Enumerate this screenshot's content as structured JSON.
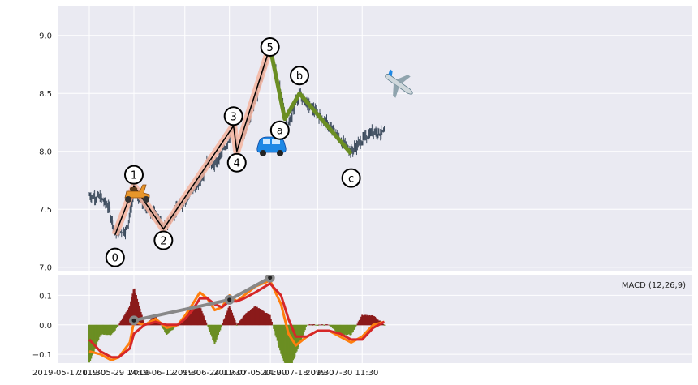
{
  "chart_data": [
    {
      "panel": "price",
      "type": "candlestick",
      "title": "",
      "xlabel": "",
      "ylabel": "",
      "ylim": [
        6.97,
        9.25
      ],
      "yticks": [
        "7.0",
        "7.5",
        "8.0",
        "8.5",
        "9.0"
      ],
      "grid": true,
      "price_path": [
        [
          "2019-05-17 11:30",
          7.62
        ],
        [
          "2019-05-20 11:30",
          7.6
        ],
        [
          "2019-05-22 14:00",
          7.52
        ],
        [
          "2019-05-24 11:30",
          7.3
        ],
        [
          "2019-05-27 11:30",
          7.32
        ],
        [
          "2019-05-28 11:30",
          7.48
        ],
        [
          "2019-05-29 14:00",
          7.68
        ],
        [
          "2019-05-31 11:30",
          7.55
        ],
        [
          "2019-06-04 11:30",
          7.45
        ],
        [
          "2019-06-06 14:00",
          7.33
        ],
        [
          "2019-06-10 11:30",
          7.52
        ],
        [
          "2019-06-13 11:30",
          7.62
        ],
        [
          "2019-06-16 11:30",
          7.75
        ],
        [
          "2019-06-18 11:30",
          7.92
        ],
        [
          "2019-06-20 11:30",
          7.88
        ],
        [
          "2019-06-23 11:30",
          8.05
        ],
        [
          "2019-06-25 14:00",
          8.22
        ],
        [
          "2019-06-26 11:30",
          8.0
        ],
        [
          "2019-06-28 11:30",
          8.18
        ],
        [
          "2019-07-01 11:30",
          8.45
        ],
        [
          "2019-07-03 11:30",
          8.7
        ],
        [
          "2019-07-05 11:30",
          8.9
        ],
        [
          "2019-07-07 11:30",
          8.62
        ],
        [
          "2019-07-09 11:30",
          8.3
        ],
        [
          "2019-07-10 11:30",
          8.22
        ],
        [
          "2019-07-12 11:30",
          8.45
        ],
        [
          "2019-07-13 11:30",
          8.48
        ],
        [
          "2019-07-17 11:30",
          8.35
        ],
        [
          "2019-07-20 11:30",
          8.25
        ],
        [
          "2019-07-24 11:30",
          8.1
        ],
        [
          "2019-07-27 11:30",
          8.0
        ],
        [
          "2019-07-30 11:30",
          8.1
        ],
        [
          "2019-08-02 11:30",
          8.18
        ],
        [
          "2019-08-05 11:30",
          8.15
        ]
      ],
      "impulse_wave": [
        {
          "label": "0",
          "x": "2019-05-24 11:30",
          "y": 7.28
        },
        {
          "label": "1",
          "x": "2019-05-29 14:00",
          "y": 7.7
        },
        {
          "label": "2",
          "x": "2019-06-06 14:00",
          "y": 7.33
        },
        {
          "label": "3",
          "x": "2019-06-25 14:00",
          "y": 8.22
        },
        {
          "label": "4",
          "x": "2019-06-26 11:30",
          "y": 8.0
        },
        {
          "label": "5",
          "x": "2019-07-05 11:30",
          "y": 8.9
        }
      ],
      "corrective_wave": [
        {
          "label": "a",
          "x": "2019-07-09 11:30",
          "y": 8.28
        },
        {
          "label": "b",
          "x": "2019-07-13 11:30",
          "y": 8.5
        },
        {
          "label": "c",
          "x": "2019-07-27 11:30",
          "y": 7.98
        }
      ],
      "colors": {
        "candle": "#3b4a5c",
        "impulse": "#000000",
        "impulse_halo": "#f6b5a0",
        "corrective": "#6b8e23"
      },
      "icons": [
        "scooter-icon",
        "car-icon",
        "airplane-icon"
      ]
    },
    {
      "panel": "macd",
      "type": "line",
      "legend": "MACD (12,26,9)",
      "ylim": [
        -0.13,
        0.17
      ],
      "yticks": [
        "−0.1",
        "0.0",
        "0.1"
      ],
      "xticks": [
        "2019-05-17 11:30",
        "2019-05-29 14:00",
        "2019-06-12 09:30",
        "2019-06-24 11:30",
        "2019-07-05 14:00",
        "2019-07-18 09:30",
        "2019-07-30 11:30"
      ],
      "series": [
        {
          "color": "#ff7f0e",
          "values": [
            [
              "2019-05-17 11:30",
              -0.09
            ],
            [
              "2019-05-20 11:30",
              -0.1
            ],
            [
              "2019-05-23 11:30",
              -0.12
            ],
            [
              "2019-05-25 11:30",
              -0.11
            ],
            [
              "2019-05-28 11:30",
              -0.06
            ],
            [
              "2019-05-29 14:00",
              0.01
            ],
            [
              "2019-06-01 11:30",
              0.0
            ],
            [
              "2019-06-04 11:30",
              0.02
            ],
            [
              "2019-06-07 11:30",
              -0.01
            ],
            [
              "2019-06-10 11:30",
              0.0
            ],
            [
              "2019-06-12 09:30",
              0.03
            ],
            [
              "2019-06-14 11:30",
              0.07
            ],
            [
              "2019-06-16 11:30",
              0.11
            ],
            [
              "2019-06-18 11:30",
              0.09
            ],
            [
              "2019-06-20 11:30",
              0.05
            ],
            [
              "2019-06-22 11:30",
              0.06
            ],
            [
              "2019-06-24 11:30",
              0.1
            ],
            [
              "2019-06-26 11:30",
              0.08
            ],
            [
              "2019-06-28 11:30",
              0.1
            ],
            [
              "2019-07-01 11:30",
              0.13
            ],
            [
              "2019-07-05 11:30",
              0.15
            ],
            [
              "2019-07-08 11:30",
              0.07
            ],
            [
              "2019-07-10 11:30",
              -0.03
            ],
            [
              "2019-07-12 11:30",
              -0.07
            ],
            [
              "2019-07-15 11:30",
              -0.04
            ],
            [
              "2019-07-18 09:30",
              -0.02
            ],
            [
              "2019-07-21 11:30",
              -0.02
            ],
            [
              "2019-07-24 11:30",
              -0.04
            ],
            [
              "2019-07-27 11:30",
              -0.06
            ],
            [
              "2019-07-30 11:30",
              -0.04
            ],
            [
              "2019-08-02 11:30",
              0.0
            ],
            [
              "2019-08-05 11:30",
              0.01
            ]
          ]
        },
        {
          "color": "#d62728",
          "values": [
            [
              "2019-05-17 11:30",
              -0.05
            ],
            [
              "2019-05-20 11:30",
              -0.09
            ],
            [
              "2019-05-23 11:30",
              -0.11
            ],
            [
              "2019-05-25 11:30",
              -0.11
            ],
            [
              "2019-05-28 11:30",
              -0.08
            ],
            [
              "2019-05-29 14:00",
              -0.03
            ],
            [
              "2019-06-01 11:30",
              0.0
            ],
            [
              "2019-06-04 11:30",
              0.01
            ],
            [
              "2019-06-07 11:30",
              0.0
            ],
            [
              "2019-06-10 11:30",
              0.0
            ],
            [
              "2019-06-12 09:30",
              0.02
            ],
            [
              "2019-06-14 11:30",
              0.05
            ],
            [
              "2019-06-16 11:30",
              0.09
            ],
            [
              "2019-06-18 11:30",
              0.09
            ],
            [
              "2019-06-20 11:30",
              0.07
            ],
            [
              "2019-06-22 11:30",
              0.06
            ],
            [
              "2019-06-24 11:30",
              0.08
            ],
            [
              "2019-06-26 11:30",
              0.08
            ],
            [
              "2019-06-28 11:30",
              0.09
            ],
            [
              "2019-07-01 11:30",
              0.11
            ],
            [
              "2019-07-05 11:30",
              0.14
            ],
            [
              "2019-07-08 11:30",
              0.1
            ],
            [
              "2019-07-10 11:30",
              0.02
            ],
            [
              "2019-07-12 11:30",
              -0.04
            ],
            [
              "2019-07-15 11:30",
              -0.04
            ],
            [
              "2019-07-18 09:30",
              -0.02
            ],
            [
              "2019-07-21 11:30",
              -0.02
            ],
            [
              "2019-07-24 11:30",
              -0.03
            ],
            [
              "2019-07-27 11:30",
              -0.05
            ],
            [
              "2019-07-30 11:30",
              -0.05
            ],
            [
              "2019-08-02 11:30",
              -0.01
            ],
            [
              "2019-08-05 11:30",
              0.01
            ]
          ]
        }
      ],
      "divergence_points": [
        [
          "2019-05-29 14:00",
          0.015
        ],
        [
          "2019-06-24 11:30",
          0.085
        ],
        [
          "2019-07-05 11:30",
          0.16
        ]
      ],
      "colors": {
        "positive_bar": "#8b1a1a",
        "negative_bar": "#6b8e23",
        "divergence": "#888888"
      }
    }
  ]
}
